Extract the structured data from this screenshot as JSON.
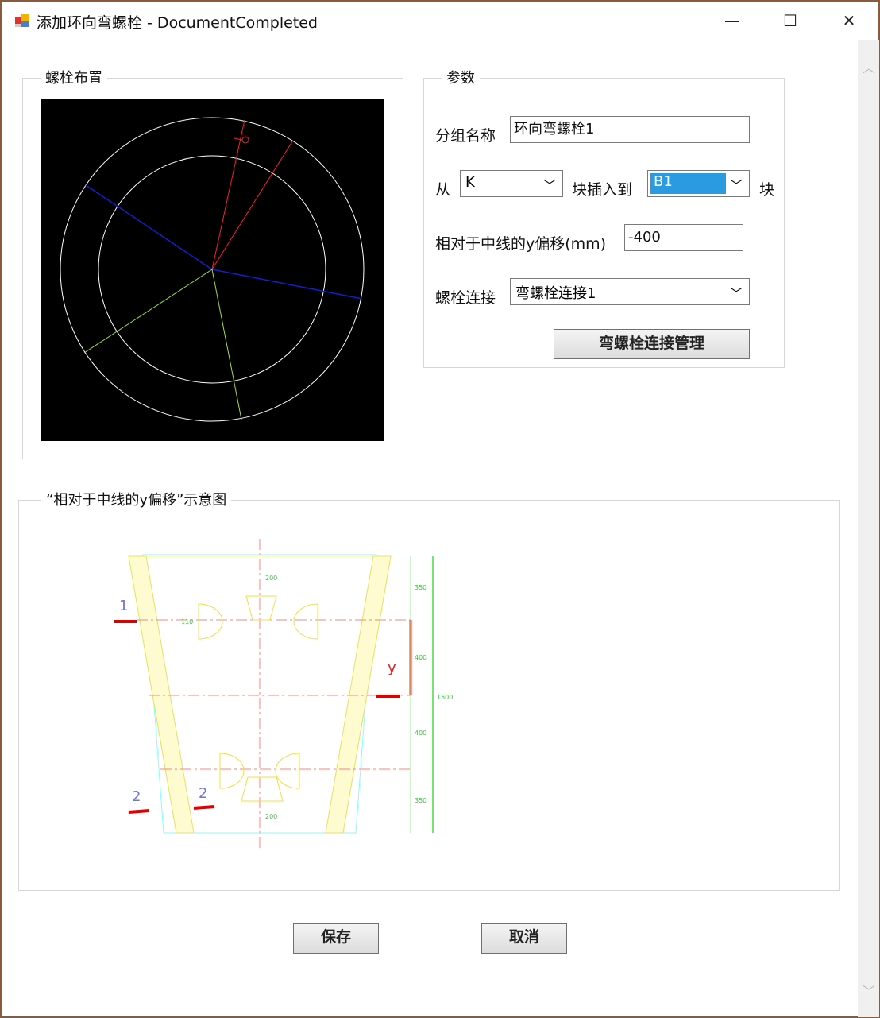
{
  "window": {
    "title": "添加环向弯螺栓 - DocumentCompleted",
    "minimize": "—",
    "maximize": "☐",
    "close": "✕"
  },
  "layout_group": {
    "label": "螺栓布置",
    "colors": {
      "background": "#000000",
      "circle": "#ffffff",
      "red": "#ff2020",
      "blue": "#1020d0",
      "green": "#a0e040"
    }
  },
  "params": {
    "label": "参数",
    "group_name_label": "分组名称",
    "group_name_value": "环向弯螺栓1",
    "from_label": "从",
    "from_value": "K",
    "insert_label": "块插入到",
    "to_value": "B1",
    "block_label": "块",
    "y_offset_label": "相对于中线的y偏移(mm)",
    "y_offset_value": "-400",
    "bolt_conn_label": "螺栓连接",
    "bolt_conn_value": "弯螺栓连接1",
    "manage_button": "弯螺栓连接管理"
  },
  "diagram": {
    "label": "“相对于中线的y偏移”示意图",
    "marks": {
      "one": "1",
      "two": "2",
      "y": "y"
    },
    "dims": [
      "200",
      "350",
      "400",
      "400",
      "350",
      "200",
      "1500",
      "110"
    ]
  },
  "buttons": {
    "save": "保存",
    "cancel": "取消"
  }
}
